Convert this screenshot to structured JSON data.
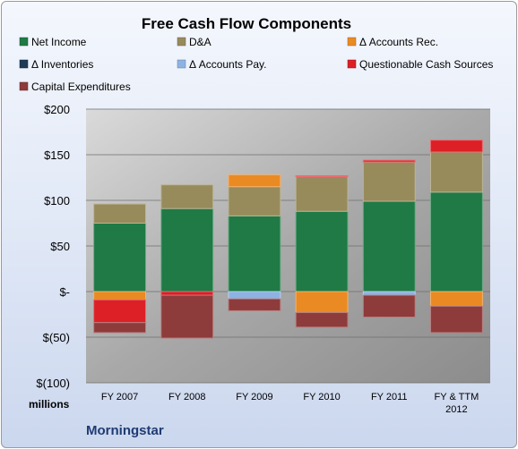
{
  "chart_data": {
    "type": "bar",
    "stacked": true,
    "title": "Free Cash Flow Components",
    "units_label": "millions",
    "source": "Morningstar",
    "categories": [
      [
        "FY 2007"
      ],
      [
        "FY 2008"
      ],
      [
        "FY 2009"
      ],
      [
        "FY 2010"
      ],
      [
        "FY 2011"
      ],
      [
        "FY & TTM",
        "2012"
      ]
    ],
    "ylim": [
      -100,
      200
    ],
    "yticks": [
      -100,
      -50,
      0,
      50,
      100,
      150,
      200
    ],
    "ytick_labels": [
      "$(100)",
      "$(50)",
      "$-",
      "$50",
      "$100",
      "$150",
      "$200"
    ],
    "grid": true,
    "legend_position": "top",
    "series": [
      {
        "name": "Net Income",
        "color": "#1f7a45",
        "values": [
          75,
          91,
          83,
          88,
          99,
          109
        ]
      },
      {
        "name": "D&A",
        "color": "#978b5c",
        "values": [
          21,
          26,
          32,
          38,
          43,
          44
        ]
      },
      {
        "name": "Δ Accounts Rec.",
        "color": "#ea8a22",
        "values": [
          -9,
          0,
          13,
          -23,
          0,
          -16
        ]
      },
      {
        "name": "Δ Inventories",
        "color": "#1e3b56",
        "values": [
          0,
          0,
          0,
          0,
          0,
          0
        ]
      },
      {
        "name": "Δ Accounts Pay.",
        "color": "#8db3e2",
        "values": [
          0,
          0,
          -8,
          0,
          -4,
          0
        ]
      },
      {
        "name": "Questionable Cash Sources",
        "color": "#dd1f26",
        "values": [
          -25,
          -4,
          0,
          1,
          2,
          13
        ]
      },
      {
        "name": "Capital Expenditures",
        "color": "#8e3b3b",
        "values": [
          -11,
          -47,
          -13,
          -16,
          -24,
          -29
        ]
      }
    ]
  }
}
